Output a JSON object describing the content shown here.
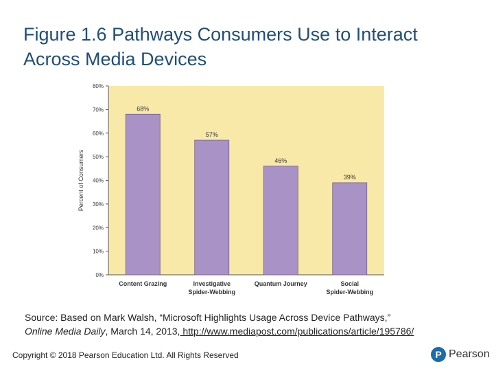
{
  "slide": {
    "title": "Figure 1.6 Pathways Consumers Use to Interact Across Media Devices"
  },
  "chart_data": {
    "type": "bar",
    "categories": [
      [
        "Content Grazing"
      ],
      [
        "Investigative",
        "Spider-Webbing"
      ],
      [
        "Quantum Journey"
      ],
      [
        "Social",
        "Spider-Webbing"
      ]
    ],
    "values": [
      68,
      57,
      46,
      39
    ],
    "value_labels": [
      "68%",
      "57%",
      "46%",
      "39%"
    ],
    "ylabel": "Percent of Consumers",
    "ylim": [
      0,
      80
    ],
    "yticks": [
      0,
      10,
      20,
      30,
      40,
      50,
      60,
      70,
      80
    ],
    "ytick_labels": [
      "0%",
      "10%",
      "20%",
      "30%",
      "40%",
      "50%",
      "60%",
      "70%",
      "80%"
    ],
    "grid": false,
    "colors": {
      "bar": "#a993c6",
      "bar_border": "#6d5a8a",
      "plot_background": "#f9e9a8"
    }
  },
  "source": {
    "prefix": "Source: Based on Mark Walsh, “Microsoft Highlights Usage Across Device Pathways,”",
    "publication": "Online Media Daily",
    "date": ", March 14, 2013,",
    "url": " http://www.mediapost.com/publications/article/195786/"
  },
  "footer": {
    "copyright": "Copyright © 2018 Pearson Education Ltd. All Rights Reserved"
  },
  "logo": {
    "mark": "P",
    "text": "Pearson"
  }
}
